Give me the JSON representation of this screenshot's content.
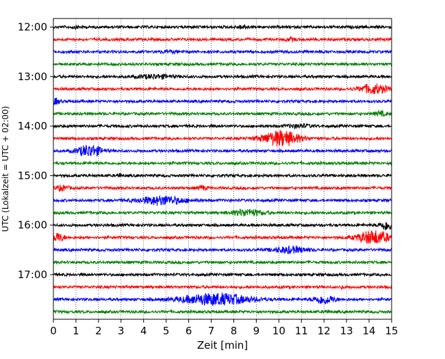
{
  "chart_data": {
    "type": "line",
    "title": "",
    "xlabel": "Zeit  [min]",
    "ylabel": "UTC (Lokalzeit = UTC + 02:00)",
    "xlim": [
      0,
      15
    ],
    "x_ticks": [
      "0",
      "1",
      "2",
      "3",
      "4",
      "5",
      "6",
      "7",
      "8",
      "9",
      "10",
      "11",
      "12",
      "13",
      "14",
      "15"
    ],
    "y_ticks": [
      "12:00",
      "13:00",
      "14:00",
      "15:00",
      "16:00",
      "17:00"
    ],
    "grid": "vertical dotted lines at each minute",
    "colors": [
      "#000000",
      "#ff0000",
      "#0000ff",
      "#008000"
    ],
    "trace_start_times": [
      "12:00",
      "12:15",
      "12:30",
      "12:45",
      "13:00",
      "13:15",
      "13:30",
      "13:45",
      "14:00",
      "14:15",
      "14:30",
      "14:45",
      "15:00",
      "15:15",
      "15:30",
      "15:45",
      "16:00",
      "16:15",
      "16:30",
      "16:45",
      "17:00",
      "17:15",
      "17:30",
      "17:45"
    ],
    "events": [
      {
        "trace": "12:00",
        "t_min": 8.4,
        "amp": 0.22,
        "dur": 0.5
      },
      {
        "trace": "12:00",
        "t_min": 1.0,
        "amp": 0.12,
        "dur": 0.4
      },
      {
        "trace": "12:15",
        "t_min": 10.5,
        "amp": 0.18,
        "dur": 0.5
      },
      {
        "trace": "12:30",
        "t_min": 5.1,
        "amp": 0.12,
        "dur": 0.8
      },
      {
        "trace": "13:00",
        "t_min": 4.5,
        "amp": 0.22,
        "dur": 1.8
      },
      {
        "trace": "13:15",
        "t_min": 14.2,
        "amp": 0.6,
        "dur": 1.4
      },
      {
        "trace": "13:30",
        "t_min": 0.1,
        "amp": 0.35,
        "dur": 0.4
      },
      {
        "trace": "13:45",
        "t_min": 14.5,
        "amp": 0.25,
        "dur": 0.6
      },
      {
        "trace": "14:00",
        "t_min": 10.9,
        "amp": 0.18,
        "dur": 1.2
      },
      {
        "trace": "14:15",
        "t_min": 10.1,
        "amp": 1.0,
        "dur": 1.8
      },
      {
        "trace": "14:30",
        "t_min": 1.6,
        "amp": 0.75,
        "dur": 1.2
      },
      {
        "trace": "15:00",
        "t_min": 2.9,
        "amp": 0.2,
        "dur": 0.2
      },
      {
        "trace": "15:15",
        "t_min": 0.4,
        "amp": 0.3,
        "dur": 0.6
      },
      {
        "trace": "15:15",
        "t_min": 6.6,
        "amp": 0.25,
        "dur": 0.4
      },
      {
        "trace": "15:30",
        "t_min": 4.8,
        "amp": 0.55,
        "dur": 2.2
      },
      {
        "trace": "15:45",
        "t_min": 8.6,
        "amp": 0.4,
        "dur": 1.5
      },
      {
        "trace": "16:00",
        "t_min": 14.8,
        "amp": 0.6,
        "dur": 0.7
      },
      {
        "trace": "16:15",
        "t_min": 0.2,
        "amp": 0.55,
        "dur": 0.6
      },
      {
        "trace": "16:15",
        "t_min": 14.2,
        "amp": 0.85,
        "dur": 1.6
      },
      {
        "trace": "16:30",
        "t_min": 10.5,
        "amp": 0.4,
        "dur": 1.6
      },
      {
        "trace": "17:15",
        "t_min": 12.8,
        "amp": 0.5,
        "dur": 0.05
      },
      {
        "trace": "17:30",
        "t_min": 7.2,
        "amp": 0.75,
        "dur": 3.3
      },
      {
        "trace": "17:30",
        "t_min": 12.0,
        "amp": 0.55,
        "dur": 1.0
      },
      {
        "trace": "17:45",
        "t_min": 12.1,
        "amp": 0.2,
        "dur": 0.2
      }
    ]
  }
}
